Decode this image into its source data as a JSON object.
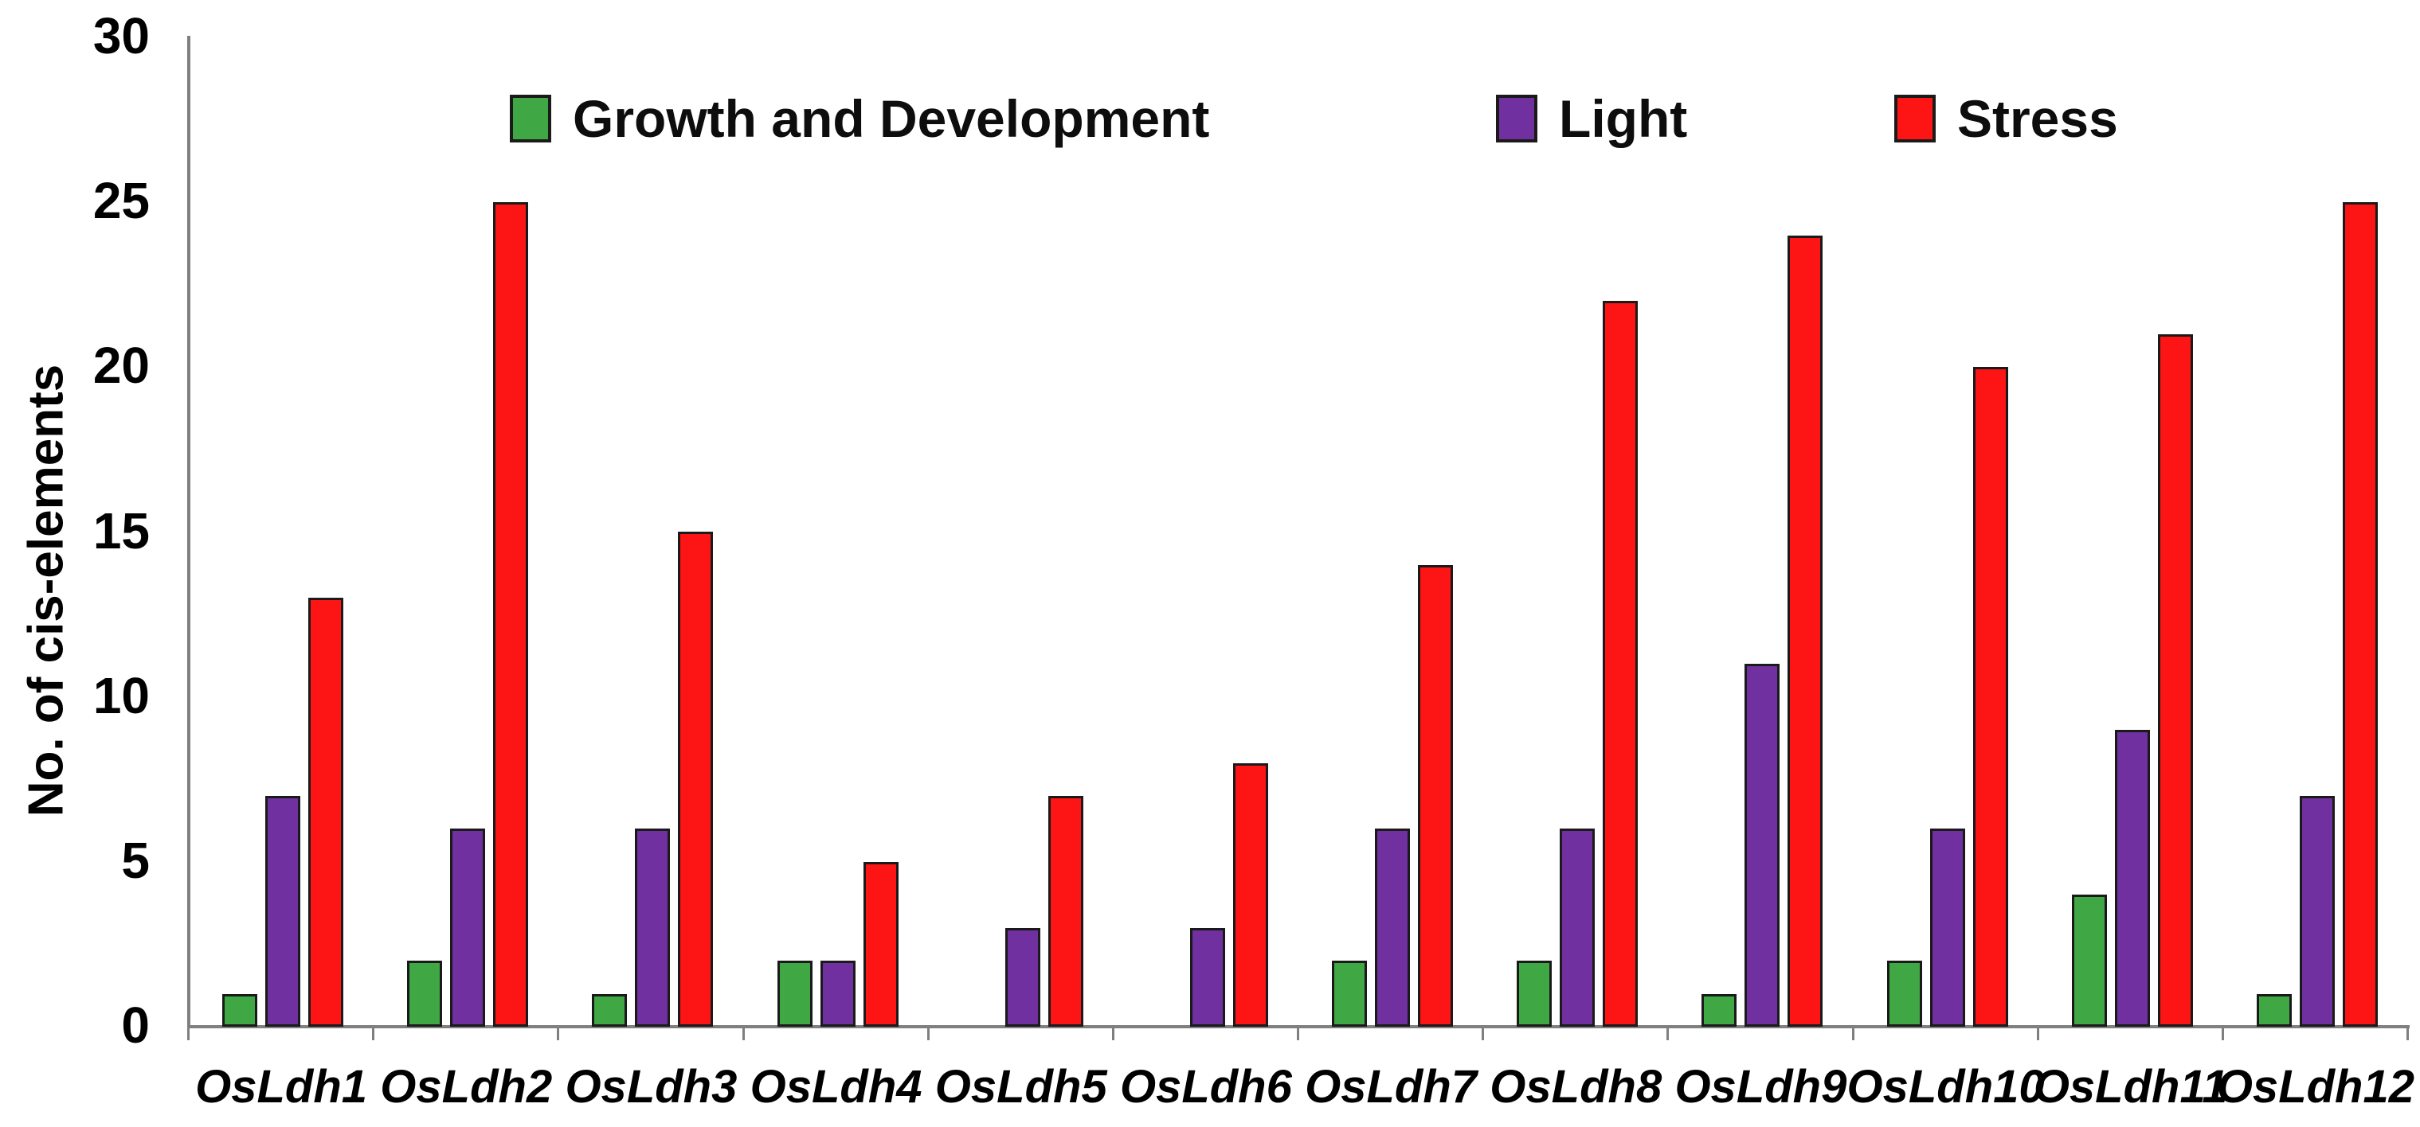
{
  "chart_data": {
    "type": "bar",
    "categories": [
      "OsLdh1",
      "OsLdh2",
      "OsLdh3",
      "OsLdh4",
      "OsLdh5",
      "OsLdh6",
      "OsLdh7",
      "OsLdh8",
      "OsLdh9",
      "OsLdh10",
      "OsLdh11",
      "OsLdh12"
    ],
    "series": [
      {
        "name": "Growth and Development",
        "color": "#3FA844",
        "values": [
          1,
          2,
          1,
          2,
          0,
          0,
          2,
          2,
          1,
          2,
          4,
          1
        ]
      },
      {
        "name": "Light",
        "color": "#7030A0",
        "values": [
          7,
          6,
          6,
          2,
          3,
          3,
          6,
          6,
          11,
          6,
          9,
          7
        ]
      },
      {
        "name": "Stress",
        "color": "#FD1414",
        "values": [
          13,
          25,
          15,
          5,
          7,
          8,
          14,
          22,
          24,
          20,
          21,
          25
        ]
      }
    ],
    "xlabel": "",
    "ylabel": "No. of cis-elements",
    "ylim": [
      0,
      30
    ],
    "yticks": [
      0,
      5,
      10,
      15,
      20,
      25,
      30
    ],
    "grid": false,
    "legend_position": "top",
    "axis_color": "#7F7F7F",
    "bar_outline_color": "#1A1A1A",
    "text_color": "#000000"
  }
}
